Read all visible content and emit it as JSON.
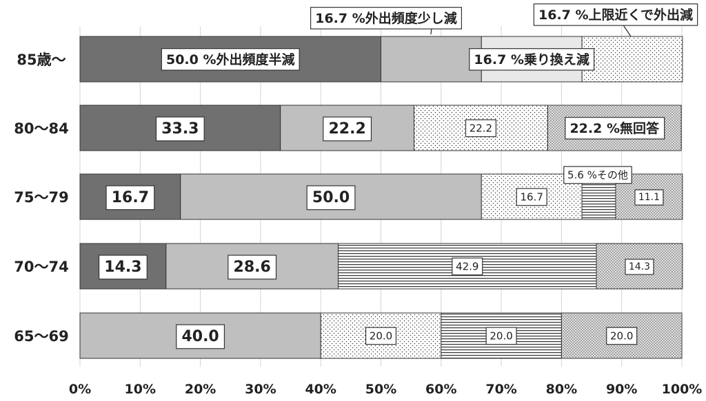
{
  "chart_data": {
    "type": "bar",
    "orientation": "horizontal",
    "stacked": "percent",
    "categories": [
      "85歳〜",
      "80〜84",
      "75〜79",
      "70〜74",
      "65〜69"
    ],
    "x_ticks": [
      "0%",
      "10%",
      "20%",
      "30%",
      "40%",
      "50%",
      "60%",
      "70%",
      "80%",
      "90%",
      "100%"
    ],
    "xlim": [
      0,
      100
    ],
    "grid": true,
    "legend": "none",
    "segments": [
      [
        {
          "value": 50.0,
          "label": "50.0 %外出頻度半減",
          "fill": "dark"
        },
        {
          "value": 16.7,
          "label": "",
          "fill": "light"
        },
        {
          "value": 16.7,
          "label": "16.7 %乗り換え減",
          "fill": "pale"
        },
        {
          "value": 16.7,
          "label": "",
          "fill": "dots"
        }
      ],
      [
        {
          "value": 33.3,
          "label": "33.3",
          "fill": "dark"
        },
        {
          "value": 22.2,
          "label": "22.2",
          "fill": "light"
        },
        {
          "value": 22.2,
          "label": "22.2",
          "fill": "dots"
        },
        {
          "value": 22.2,
          "label": "22.2 %無回答",
          "fill": "densedots"
        }
      ],
      [
        {
          "value": 16.7,
          "label": "16.7",
          "fill": "dark"
        },
        {
          "value": 50.0,
          "label": "50.0",
          "fill": "light"
        },
        {
          "value": 16.7,
          "label": "16.7",
          "fill": "dots"
        },
        {
          "value": 5.6,
          "label": "",
          "fill": "hlines"
        },
        {
          "value": 11.1,
          "label": "11.1",
          "fill": "densedots"
        }
      ],
      [
        {
          "value": 14.3,
          "label": "14.3",
          "fill": "dark"
        },
        {
          "value": 28.6,
          "label": "28.6",
          "fill": "light"
        },
        {
          "value": 42.9,
          "label": "42.9",
          "fill": "hlines"
        },
        {
          "value": 14.3,
          "label": "14.3",
          "fill": "densedots"
        }
      ],
      [
        {
          "value": 40.0,
          "label": "40.0",
          "fill": "light"
        },
        {
          "value": 20.0,
          "label": "20.0",
          "fill": "dots"
        },
        {
          "value": 20.0,
          "label": "20.0",
          "fill": "hlines"
        },
        {
          "value": 20.0,
          "label": "20.0",
          "fill": "densedots"
        }
      ]
    ],
    "callouts": [
      {
        "text": "16.7 %外出頻度少し減",
        "row": 0,
        "segment": 1
      },
      {
        "text": "16.7 %上限近くで外出減",
        "row": 0,
        "segment": 3
      },
      {
        "text": "5.6 %その他",
        "row": 2,
        "segment": 3
      }
    ],
    "colors": {
      "dark": "#707070",
      "light": "#bfbfbf",
      "pale": "#e8e8e8",
      "dots_bg": "#ffffff",
      "dots_fg": "#444444",
      "densedots_bg": "#e0e0e0",
      "densedots_fg": "#555555",
      "hlines_bg": "#ffffff",
      "hlines_fg": "#333333",
      "border": "#333333",
      "grid": "#d4d4d4"
    }
  }
}
